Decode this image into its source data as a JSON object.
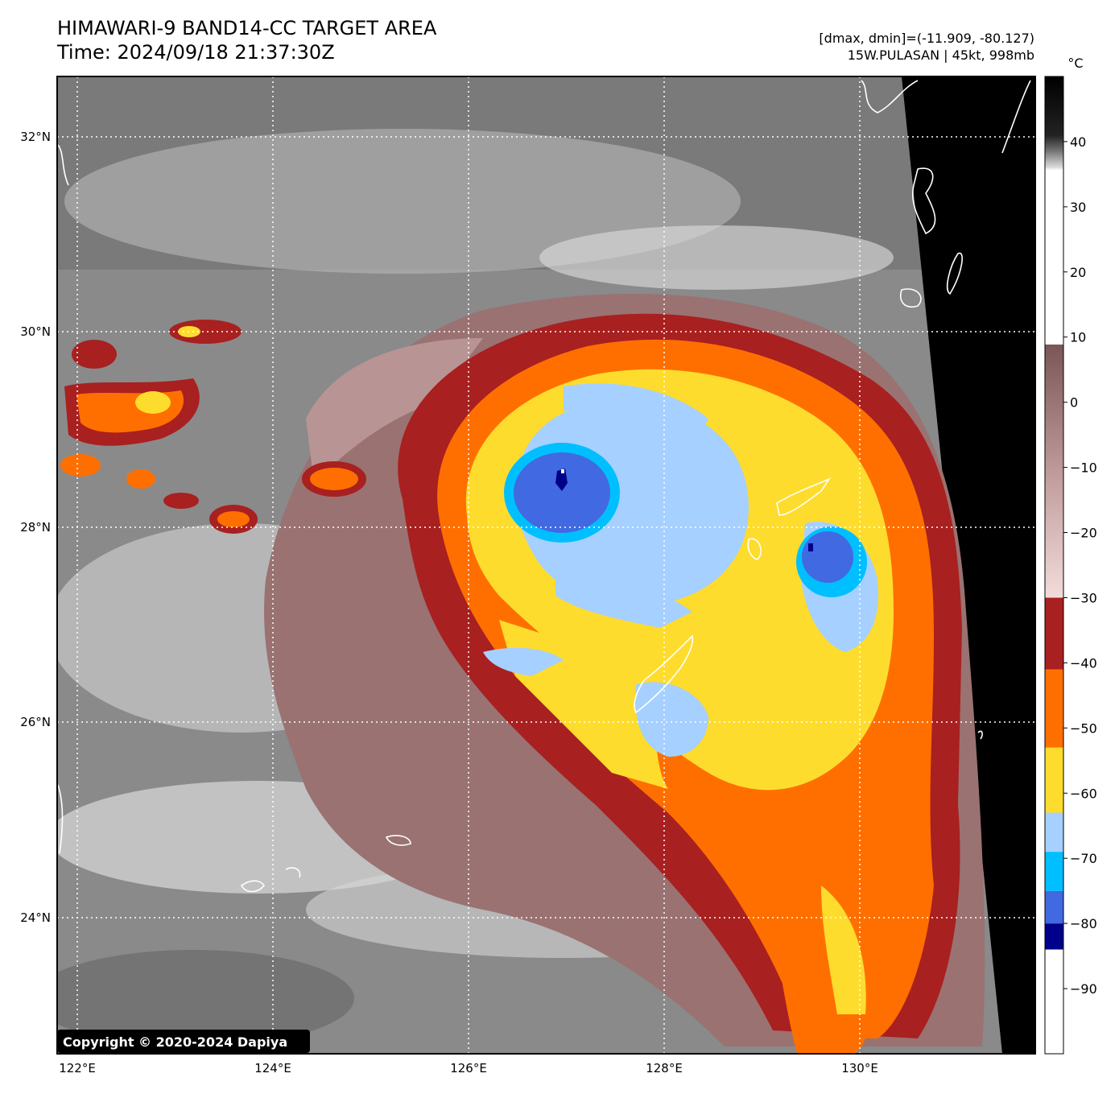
{
  "header": {
    "title_line1": "HIMAWARI-9 BAND14-CC TARGET AREA",
    "title_line2": "Time: 2024/09/18 21:37:30Z",
    "dmax_dmin": "[dmax, dmin]=(-11.909, -80.127)",
    "storm_info": "15W.PULASAN | 45kt, 998mb"
  },
  "map": {
    "lon_range": [
      121.9,
      131.9
    ],
    "lat_range": [
      22.6,
      32.6
    ],
    "lon_ticks": [
      "122°E",
      "124°E",
      "126°E",
      "128°E",
      "130°E"
    ],
    "lat_ticks": [
      "32°N",
      "30°N",
      "28°N",
      "26°N",
      "24°N"
    ],
    "grid": "dotted white",
    "eye_primary": {
      "lon": 126.9,
      "lat": 28.4
    },
    "eye_secondary": {
      "lon": 129.6,
      "lat": 27.8
    },
    "copyright": "Copyright © 2020-2024 Dapiya"
  },
  "colorbar": {
    "unit": "°C",
    "range": [
      -100,
      50
    ],
    "labels": [
      "40",
      "30",
      "20",
      "10",
      "0",
      "−10",
      "−20",
      "−30",
      "−40",
      "−50",
      "−60",
      "−70",
      "−80",
      "−90"
    ],
    "bands": [
      {
        "from": -100,
        "to": -84,
        "color": "#ffffff"
      },
      {
        "from": -84,
        "to": -80,
        "color": "#00008b"
      },
      {
        "from": -80,
        "to": -75,
        "color": "#4169e1"
      },
      {
        "from": -75,
        "to": -69,
        "color": "#00bfff"
      },
      {
        "from": -69,
        "to": -63,
        "color": "#a6d0ff"
      },
      {
        "from": -63,
        "to": -53,
        "color": "#fedc2d"
      },
      {
        "from": -53,
        "to": -41,
        "color": "#ff6f00"
      },
      {
        "from": -41,
        "to": -30,
        "color": "#a82020"
      }
    ]
  }
}
